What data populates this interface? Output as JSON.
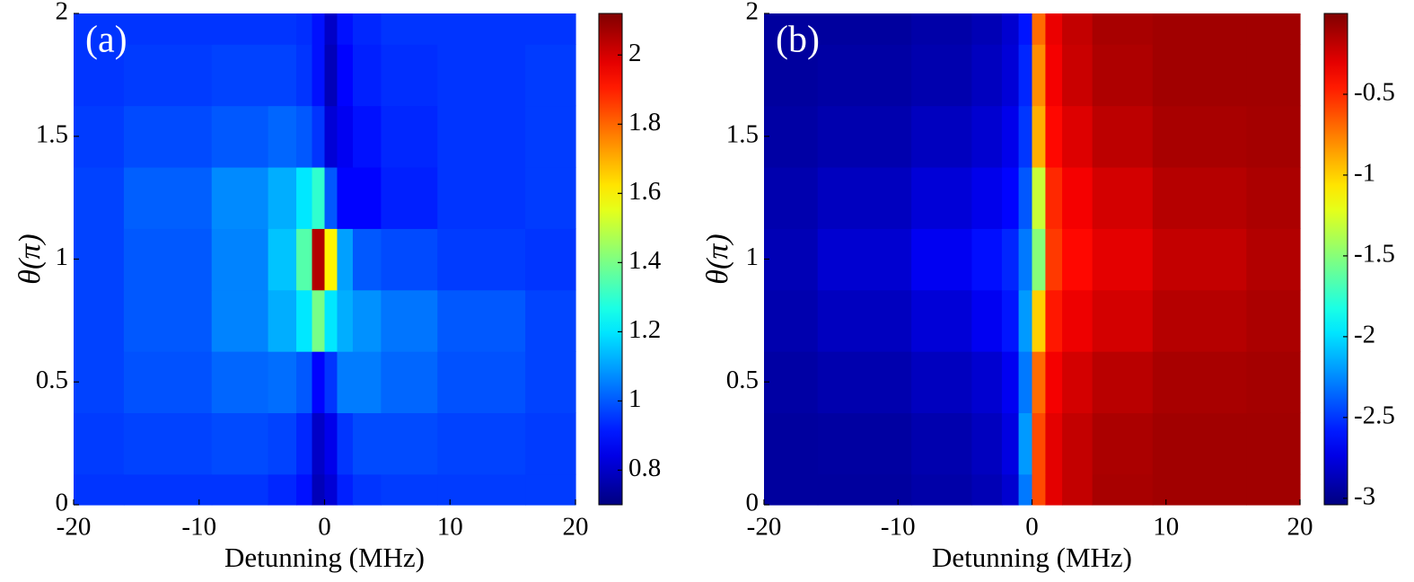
{
  "chart_data": [
    {
      "type": "heatmap",
      "label": "(a)",
      "x_label": "Detunning (MHz)",
      "y_label": "θ(π)",
      "colormap": "jet",
      "x": [
        -20,
        -12,
        -6,
        -3,
        -1.5,
        -0.5,
        0.5,
        1.5,
        3,
        6,
        12,
        20
      ],
      "y": [
        0,
        0.25,
        0.5,
        0.75,
        1,
        1.25,
        1.5,
        1.75,
        2
      ],
      "z": [
        [
          0.95,
          0.95,
          0.95,
          0.93,
          0.9,
          0.78,
          0.82,
          0.92,
          0.95,
          0.96,
          0.96,
          0.96
        ],
        [
          0.96,
          0.97,
          0.98,
          0.97,
          0.93,
          0.8,
          0.85,
          0.95,
          0.98,
          0.98,
          0.97,
          0.96
        ],
        [
          0.97,
          0.99,
          1.02,
          1.03,
          1.0,
          0.88,
          0.95,
          1.05,
          1.05,
          1.02,
          0.99,
          0.97
        ],
        [
          0.97,
          1.0,
          1.06,
          1.12,
          1.2,
          1.4,
          1.2,
          1.12,
          1.08,
          1.04,
          1.0,
          0.97
        ],
        [
          0.97,
          1.0,
          1.06,
          1.15,
          1.35,
          2.05,
          1.6,
          1.1,
          1.0,
          0.98,
          0.96,
          0.95
        ],
        [
          0.97,
          1.01,
          1.07,
          1.12,
          1.2,
          1.3,
          1.0,
          0.88,
          0.88,
          0.92,
          0.95,
          0.96
        ],
        [
          0.96,
          0.98,
          1.0,
          1.02,
          1.0,
          0.95,
          0.82,
          0.86,
          0.9,
          0.93,
          0.95,
          0.96
        ],
        [
          0.95,
          0.96,
          0.97,
          0.97,
          0.95,
          0.9,
          0.78,
          0.88,
          0.92,
          0.94,
          0.95,
          0.96
        ],
        [
          0.95,
          0.95,
          0.95,
          0.95,
          0.94,
          0.9,
          0.8,
          0.9,
          0.93,
          0.95,
          0.95,
          0.95
        ]
      ],
      "xlim": [
        -20,
        20
      ],
      "xticks": [
        -20,
        -10,
        0,
        10,
        20
      ],
      "ylim": [
        0,
        2
      ],
      "yticks": [
        0,
        0.5,
        1,
        1.5,
        2
      ],
      "zlim": [
        0.7,
        2.12
      ],
      "zticks": [
        0.8,
        1,
        1.2,
        1.4,
        1.6,
        1.8,
        2
      ]
    },
    {
      "type": "heatmap",
      "label": "(b)",
      "x_label": "Detunning (MHz)",
      "y_label": "θ(π)",
      "colormap": "jet",
      "x": [
        -20,
        -12,
        -6,
        -3,
        -1.5,
        -0.5,
        0.5,
        1.5,
        3,
        6,
        12,
        20
      ],
      "y": [
        0,
        0.25,
        0.5,
        0.75,
        1,
        1.25,
        1.5,
        1.75,
        2
      ],
      "z": [
        [
          -2.95,
          -2.95,
          -2.92,
          -2.88,
          -2.8,
          -2.3,
          -0.6,
          -0.3,
          -0.2,
          -0.12,
          -0.1,
          -0.1
        ],
        [
          -2.95,
          -2.94,
          -2.9,
          -2.85,
          -2.75,
          -2.2,
          -0.6,
          -0.3,
          -0.2,
          -0.13,
          -0.1,
          -0.1
        ],
        [
          -2.93,
          -2.9,
          -2.85,
          -2.8,
          -2.7,
          -2.3,
          -0.7,
          -0.35,
          -0.25,
          -0.17,
          -0.12,
          -0.11
        ],
        [
          -2.9,
          -2.85,
          -2.78,
          -2.7,
          -2.6,
          -2.2,
          -1.0,
          -0.45,
          -0.33,
          -0.25,
          -0.16,
          -0.13
        ],
        [
          -2.88,
          -2.8,
          -2.7,
          -2.62,
          -2.55,
          -2.3,
          -1.5,
          -0.55,
          -0.4,
          -0.3,
          -0.2,
          -0.15
        ],
        [
          -2.9,
          -2.85,
          -2.78,
          -2.72,
          -2.65,
          -2.4,
          -1.3,
          -0.5,
          -0.35,
          -0.25,
          -0.16,
          -0.13
        ],
        [
          -2.93,
          -2.9,
          -2.85,
          -2.8,
          -2.72,
          -2.5,
          -0.9,
          -0.4,
          -0.28,
          -0.18,
          -0.12,
          -0.11
        ],
        [
          -2.95,
          -2.93,
          -2.9,
          -2.85,
          -2.78,
          -2.55,
          -0.8,
          -0.35,
          -0.22,
          -0.14,
          -0.1,
          -0.1
        ],
        [
          -2.95,
          -2.95,
          -2.92,
          -2.88,
          -2.8,
          -2.6,
          -0.7,
          -0.32,
          -0.2,
          -0.12,
          -0.1,
          -0.1
        ]
      ],
      "xlim": [
        -20,
        20
      ],
      "xticks": [
        -20,
        -10,
        0,
        10,
        20
      ],
      "ylim": [
        0,
        2
      ],
      "yticks": [
        0,
        0.5,
        1,
        1.5,
        2
      ],
      "zlim": [
        -3.04,
        0
      ],
      "zticks": [
        -3,
        -2.5,
        -2,
        -1.5,
        -1,
        -0.5
      ]
    }
  ]
}
